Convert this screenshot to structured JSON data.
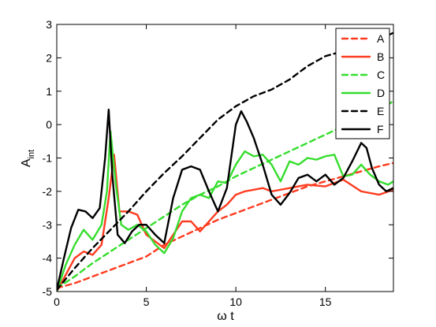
{
  "chart_data": {
    "type": "line",
    "xlabel": "ω t",
    "ylabel_main": "A",
    "ylabel_sub": "int",
    "xlim": [
      0,
      18.8
    ],
    "ylim": [
      -5,
      3
    ],
    "xticks": [
      0,
      5,
      10,
      15
    ],
    "xtick_labels": [
      "0",
      "5",
      "10",
      "15"
    ],
    "yticks": [
      -5,
      -4,
      -3,
      -2,
      -1,
      0,
      1,
      2,
      3
    ],
    "ytick_labels": [
      "-5",
      "-4",
      "-3",
      "-2",
      "-1",
      "0",
      "1",
      "2",
      "3"
    ],
    "grid": false,
    "legend": "top-right",
    "series": [
      {
        "name": "A",
        "color": "#ff3b1f",
        "dashed": true,
        "x": [
          0,
          1,
          2,
          3,
          4,
          5,
          6,
          7,
          8,
          9,
          10,
          11,
          12,
          13,
          14,
          15,
          16,
          17,
          18,
          18.8
        ],
        "y": [
          -4.9,
          -4.75,
          -4.55,
          -4.35,
          -4.15,
          -3.95,
          -3.6,
          -3.35,
          -3.1,
          -2.85,
          -2.65,
          -2.45,
          -2.25,
          -2.05,
          -1.85,
          -1.7,
          -1.55,
          -1.4,
          -1.25,
          -1.15
        ]
      },
      {
        "name": "B",
        "color": "#ff3b1f",
        "dashed": false,
        "x": [
          0,
          0.5,
          1,
          1.5,
          2,
          2.5,
          2.9,
          3.2,
          3.5,
          4,
          4.5,
          5,
          5.5,
          6,
          6.5,
          7,
          7.5,
          8,
          8.5,
          9,
          9.5,
          10,
          10.5,
          11,
          11.5,
          12,
          13,
          14,
          15,
          16,
          17,
          18,
          18.8
        ],
        "y": [
          -5.0,
          -4.5,
          -4.0,
          -3.8,
          -3.9,
          -3.6,
          -2.2,
          -0.9,
          -2.6,
          -2.6,
          -2.7,
          -3.3,
          -3.5,
          -3.7,
          -3.3,
          -2.9,
          -2.9,
          -3.2,
          -2.9,
          -2.6,
          -2.4,
          -2.1,
          -2.0,
          -1.95,
          -1.9,
          -2.0,
          -1.9,
          -1.8,
          -1.85,
          -1.65,
          -2.0,
          -2.1,
          -1.95
        ]
      },
      {
        "name": "C",
        "color": "#35dd2d",
        "dashed": true,
        "x": [
          0,
          1,
          2,
          3,
          4,
          5,
          6,
          7,
          8,
          9,
          10,
          11,
          12,
          13,
          14,
          15,
          16,
          17,
          18,
          18.8
        ],
        "y": [
          -4.9,
          -4.55,
          -4.15,
          -3.8,
          -3.45,
          -3.1,
          -2.75,
          -2.4,
          -2.1,
          -1.85,
          -1.55,
          -1.3,
          -1.05,
          -0.8,
          -0.55,
          -0.3,
          -0.05,
          0.2,
          0.45,
          0.7
        ]
      },
      {
        "name": "D",
        "color": "#35dd2d",
        "dashed": false,
        "x": [
          0,
          0.5,
          1,
          1.5,
          2,
          2.5,
          2.8,
          3.0,
          3.3,
          3.6,
          4,
          4.5,
          5,
          5.5,
          6,
          6.5,
          7,
          7.5,
          8,
          8.5,
          9,
          9.5,
          10,
          10.5,
          11,
          11.5,
          12,
          12.5,
          13,
          13.5,
          14,
          14.5,
          15,
          15.5,
          16,
          16.5,
          17,
          17.5,
          18,
          18.5,
          18.8
        ],
        "y": [
          -5.0,
          -4.2,
          -3.6,
          -3.15,
          -3.45,
          -3.0,
          -2.0,
          -0.2,
          -1.8,
          -3.0,
          -3.15,
          -3.0,
          -3.2,
          -3.6,
          -3.85,
          -3.4,
          -2.6,
          -2.2,
          -2.1,
          -2.2,
          -1.7,
          -1.75,
          -1.2,
          -0.8,
          -0.95,
          -0.9,
          -1.2,
          -1.7,
          -1.1,
          -1.2,
          -1.0,
          -1.05,
          -0.95,
          -0.9,
          -1.55,
          -1.5,
          -1.2,
          -1.5,
          -1.7,
          -1.8,
          -1.7
        ]
      },
      {
        "name": "E",
        "color": "#000000",
        "dashed": true,
        "x": [
          0,
          1,
          2,
          3,
          4,
          5,
          6,
          7,
          8,
          9,
          10,
          11,
          12,
          13,
          14,
          15,
          16,
          17,
          18,
          18.8
        ],
        "y": [
          -4.95,
          -4.3,
          -3.7,
          -3.15,
          -2.6,
          -2.0,
          -1.45,
          -0.95,
          -0.4,
          0.15,
          0.55,
          0.85,
          1.05,
          1.35,
          1.75,
          2.05,
          2.2,
          2.35,
          2.55,
          2.75
        ]
      },
      {
        "name": "F",
        "color": "#000000",
        "dashed": false,
        "x": [
          0,
          0.4,
          0.8,
          1.2,
          1.6,
          2.0,
          2.4,
          2.7,
          2.9,
          3.1,
          3.4,
          3.8,
          4.2,
          4.6,
          5.0,
          5.5,
          6.0,
          6.5,
          7.0,
          7.5,
          8.0,
          8.5,
          9.0,
          9.5,
          10.0,
          10.3,
          10.6,
          11.0,
          11.5,
          12.0,
          12.5,
          13.0,
          13.5,
          14.0,
          14.5,
          15.0,
          15.5,
          16.0,
          16.5,
          17.0,
          17.3,
          17.6,
          18.0,
          18.4,
          18.8
        ],
        "y": [
          -4.95,
          -4.0,
          -3.1,
          -2.55,
          -2.6,
          -2.8,
          -2.5,
          -1.0,
          0.45,
          -1.5,
          -3.3,
          -3.55,
          -3.2,
          -3.0,
          -3.0,
          -3.3,
          -3.55,
          -2.2,
          -1.35,
          -1.25,
          -1.35,
          -2.0,
          -2.6,
          -1.9,
          0.0,
          0.4,
          0.1,
          -0.4,
          -1.2,
          -2.1,
          -2.4,
          -2.05,
          -1.6,
          -1.5,
          -1.7,
          -1.5,
          -1.8,
          -1.6,
          -1.1,
          -0.55,
          -0.7,
          -1.3,
          -1.8,
          -2.0,
          -1.9
        ]
      }
    ]
  }
}
